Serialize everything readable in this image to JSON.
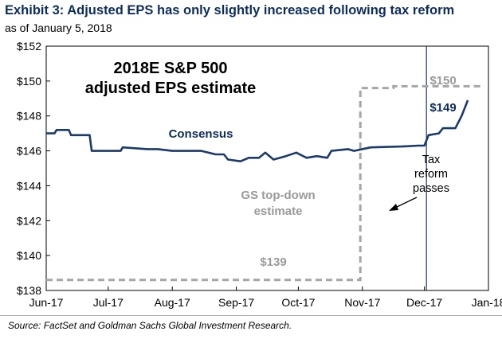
{
  "title": "Exhibit 3: Adjusted EPS has only slightly increased following tax reform",
  "subtitle": "as of January 5, 2018",
  "source": "Source: FactSet and Goldman Sachs Global Investment Research.",
  "colors": {
    "consensus": "#1b3a6b",
    "gs": "#a6a6a6",
    "marker": "#1b3a6b",
    "title": "#0d2d5e"
  },
  "chart_data": {
    "type": "line",
    "title_in_chart": [
      "2018E S&P 500",
      "adjusted EPS estimate"
    ],
    "ylim": [
      138,
      152
    ],
    "y_ticks": [
      138,
      140,
      142,
      144,
      146,
      148,
      150,
      152
    ],
    "y_tick_labels": [
      "$138",
      "$140",
      "$142",
      "$144",
      "$146",
      "$148",
      "$150",
      "$152"
    ],
    "x_ticks": [
      "2017-06-01",
      "2017-07-01",
      "2017-08-01",
      "2017-09-01",
      "2017-10-01",
      "2017-11-01",
      "2017-12-01",
      "2018-01-01"
    ],
    "x_tick_labels": [
      "Jun-17",
      "Jul-17",
      "Aug-17",
      "Sep-17",
      "Oct-17",
      "Nov-17",
      "Dec-17",
      "Jan-18"
    ],
    "grid": false,
    "series": [
      {
        "name": "Consensus",
        "style": "solid",
        "points": [
          [
            "2017-06-01",
            147.0
          ],
          [
            "2017-06-05",
            147.0
          ],
          [
            "2017-06-06",
            147.2
          ],
          [
            "2017-06-12",
            147.2
          ],
          [
            "2017-06-13",
            146.9
          ],
          [
            "2017-06-22",
            146.9
          ],
          [
            "2017-06-23",
            146.0
          ],
          [
            "2017-07-07",
            146.0
          ],
          [
            "2017-07-08",
            146.2
          ],
          [
            "2017-07-20",
            146.1
          ],
          [
            "2017-07-25",
            146.1
          ],
          [
            "2017-08-01",
            146.0
          ],
          [
            "2017-08-15",
            146.0
          ],
          [
            "2017-08-22",
            145.8
          ],
          [
            "2017-08-26",
            145.8
          ],
          [
            "2017-08-28",
            145.5
          ],
          [
            "2017-09-03",
            145.4
          ],
          [
            "2017-09-07",
            145.6
          ],
          [
            "2017-09-12",
            145.6
          ],
          [
            "2017-09-15",
            145.9
          ],
          [
            "2017-09-19",
            145.5
          ],
          [
            "2017-09-25",
            145.7
          ],
          [
            "2017-09-30",
            145.9
          ],
          [
            "2017-10-05",
            145.6
          ],
          [
            "2017-10-10",
            145.7
          ],
          [
            "2017-10-15",
            145.6
          ],
          [
            "2017-10-17",
            146.0
          ],
          [
            "2017-10-25",
            146.1
          ],
          [
            "2017-10-28",
            146.0
          ],
          [
            "2017-11-05",
            146.2
          ],
          [
            "2017-11-20",
            146.25
          ],
          [
            "2017-11-28",
            146.3
          ],
          [
            "2017-12-01",
            146.3
          ],
          [
            "2017-12-03",
            146.9
          ],
          [
            "2017-12-08",
            147.0
          ],
          [
            "2017-12-10",
            147.3
          ],
          [
            "2017-12-16",
            147.3
          ],
          [
            "2017-12-19",
            148.0
          ],
          [
            "2017-12-22",
            148.9
          ]
        ],
        "end_label": "$149"
      },
      {
        "name": "GS top-down estimate",
        "style": "dashed",
        "points": [
          [
            "2017-06-01",
            138.6
          ],
          [
            "2017-10-31",
            138.6
          ],
          [
            "2017-10-31",
            149.6
          ],
          [
            "2017-11-16",
            149.6
          ],
          [
            "2017-11-16",
            149.7
          ],
          [
            "2017-12-30",
            149.7
          ]
        ],
        "start_label": "$139",
        "end_label": "$150"
      }
    ],
    "annotations": {
      "consensus_label": "Consensus",
      "gs_label": [
        "GS top-down",
        "estimate"
      ],
      "tax_reform_label": [
        "Tax",
        "reform",
        "passes"
      ],
      "tax_reform_date": "2017-12-02"
    }
  }
}
